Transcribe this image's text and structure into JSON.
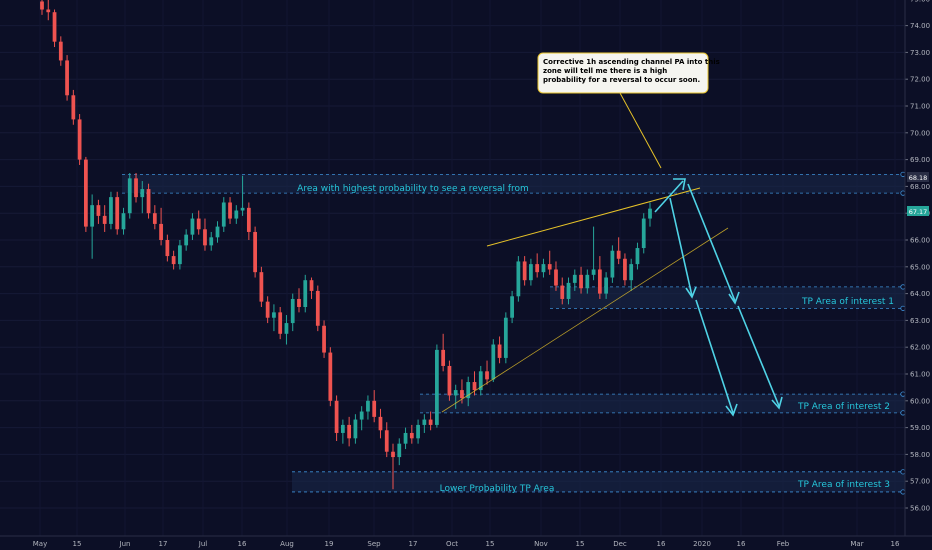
{
  "chart_data": {
    "type": "candlestick",
    "symbol_axis": {
      "yticks": [
        "56.00",
        "57.00",
        "58.00",
        "59.00",
        "60.00",
        "61.00",
        "62.00",
        "63.00",
        "64.00",
        "65.00",
        "66.00",
        "67.00",
        "68.00",
        "69.00",
        "70.00",
        "71.00",
        "72.00",
        "73.00",
        "74.00",
        "75.00"
      ],
      "ylim": [
        55.3,
        75.2
      ]
    },
    "x_ticks": [
      "May",
      "15",
      "Jun",
      "17",
      "Jul",
      "16",
      "Aug",
      "19",
      "Sep",
      "17",
      "Oct",
      "15",
      "Nov",
      "15",
      "Dec",
      "16",
      "2020",
      "16",
      "Feb",
      "Mar",
      "16"
    ],
    "current_price": "67.17",
    "top_level_price": "68.18",
    "colors": {
      "background": "#0c0f26",
      "up": "#26a69a",
      "down": "#ef5350",
      "zone_line": "#3d8fd6",
      "channel": "#e6c229",
      "arrow": "#4fd3e6",
      "label": "#26c6da",
      "note_bg": "#f5f5f0",
      "note_border": "#e6c229"
    },
    "zones": [
      {
        "label": "Area with highest probability to see a reversal from",
        "top": 68.45,
        "bottom": 67.75
      },
      {
        "label": "TP Area of interest 1",
        "top": 64.25,
        "bottom": 63.45
      },
      {
        "label": "TP Area of interest 2",
        "top": 60.25,
        "bottom": 59.55
      },
      {
        "label": "Lower Probability TP Area",
        "top": 57.35,
        "bottom": 56.6
      }
    ],
    "extra_labels": [
      {
        "label": "TP Area of interest 3"
      }
    ],
    "annotation": {
      "text_lines": [
        "Corrective 1h ascending channel  PA into this",
        " zone will tell me there is a high",
        "probability for a reversal to occur soon."
      ]
    },
    "candles": [
      [
        74.9,
        75.2,
        74.4,
        74.6
      ],
      [
        74.6,
        75.0,
        74.2,
        74.5
      ],
      [
        74.5,
        74.6,
        73.2,
        73.4
      ],
      [
        73.4,
        73.6,
        72.5,
        72.7
      ],
      [
        72.7,
        72.9,
        71.2,
        71.4
      ],
      [
        71.4,
        71.6,
        70.3,
        70.5
      ],
      [
        70.5,
        70.7,
        68.8,
        69.0
      ],
      [
        69.0,
        69.1,
        66.3,
        66.5
      ],
      [
        66.5,
        67.7,
        65.3,
        67.3
      ],
      [
        67.3,
        67.5,
        66.6,
        66.9
      ],
      [
        66.9,
        67.3,
        66.3,
        66.6
      ],
      [
        66.6,
        67.8,
        66.4,
        67.6
      ],
      [
        67.6,
        67.8,
        66.2,
        66.4
      ],
      [
        66.4,
        67.2,
        66.2,
        67.0
      ],
      [
        67.0,
        68.5,
        66.8,
        68.3
      ],
      [
        68.3,
        68.5,
        67.4,
        67.6
      ],
      [
        67.6,
        68.2,
        67.0,
        67.9
      ],
      [
        67.9,
        68.1,
        66.8,
        67.0
      ],
      [
        67.0,
        67.3,
        66.4,
        66.6
      ],
      [
        66.6,
        67.2,
        65.8,
        66.0
      ],
      [
        66.0,
        66.2,
        65.2,
        65.4
      ],
      [
        65.4,
        65.6,
        64.9,
        65.1
      ],
      [
        65.1,
        66.0,
        64.9,
        65.8
      ],
      [
        65.8,
        66.4,
        65.6,
        66.2
      ],
      [
        66.2,
        67.0,
        66.0,
        66.8
      ],
      [
        66.8,
        67.1,
        66.2,
        66.4
      ],
      [
        66.4,
        66.8,
        65.6,
        65.8
      ],
      [
        65.8,
        66.3,
        65.6,
        66.1
      ],
      [
        66.1,
        66.7,
        65.9,
        66.5
      ],
      [
        66.5,
        67.6,
        66.3,
        67.4
      ],
      [
        67.4,
        67.6,
        66.6,
        66.8
      ],
      [
        66.8,
        67.3,
        66.6,
        67.1
      ],
      [
        67.1,
        68.4,
        66.9,
        67.2
      ],
      [
        67.2,
        67.4,
        66.0,
        66.3
      ],
      [
        66.3,
        66.5,
        64.6,
        64.8
      ],
      [
        64.8,
        65.0,
        63.5,
        63.7
      ],
      [
        63.7,
        63.9,
        62.9,
        63.1
      ],
      [
        63.1,
        63.6,
        62.6,
        63.3
      ],
      [
        63.3,
        63.5,
        62.3,
        62.5
      ],
      [
        62.5,
        63.2,
        62.1,
        62.9
      ],
      [
        62.9,
        64.0,
        62.6,
        63.8
      ],
      [
        63.8,
        64.2,
        63.3,
        63.5
      ],
      [
        63.5,
        64.7,
        63.3,
        64.5
      ],
      [
        64.5,
        64.6,
        63.8,
        64.1
      ],
      [
        64.1,
        64.3,
        62.6,
        62.8
      ],
      [
        62.8,
        63.0,
        61.6,
        61.8
      ],
      [
        61.8,
        62.0,
        59.8,
        60.0
      ],
      [
        60.0,
        60.2,
        58.5,
        58.8
      ],
      [
        58.8,
        59.3,
        58.4,
        59.1
      ],
      [
        59.1,
        59.4,
        58.3,
        58.6
      ],
      [
        58.6,
        59.5,
        58.4,
        59.3
      ],
      [
        59.3,
        59.8,
        58.9,
        59.6
      ],
      [
        59.6,
        60.2,
        59.3,
        60.0
      ],
      [
        60.0,
        60.4,
        59.2,
        59.4
      ],
      [
        59.4,
        59.7,
        58.6,
        58.9
      ],
      [
        58.9,
        59.2,
        57.9,
        58.1
      ],
      [
        58.1,
        58.4,
        56.7,
        57.9
      ],
      [
        57.9,
        58.6,
        57.6,
        58.4
      ],
      [
        58.4,
        59.0,
        58.2,
        58.8
      ],
      [
        58.8,
        59.1,
        58.4,
        58.6
      ],
      [
        58.6,
        59.3,
        58.4,
        59.1
      ],
      [
        59.1,
        59.5,
        58.8,
        59.3
      ],
      [
        59.3,
        59.6,
        58.9,
        59.1
      ],
      [
        59.1,
        62.1,
        59.0,
        61.9
      ],
      [
        61.9,
        62.5,
        61.1,
        61.3
      ],
      [
        61.3,
        61.5,
        60.0,
        60.2
      ],
      [
        60.2,
        60.6,
        59.7,
        60.4
      ],
      [
        60.4,
        60.8,
        59.9,
        60.1
      ],
      [
        60.1,
        60.9,
        59.8,
        60.7
      ],
      [
        60.7,
        61.1,
        60.2,
        60.4
      ],
      [
        60.4,
        61.3,
        60.2,
        61.1
      ],
      [
        61.1,
        61.5,
        60.6,
        60.8
      ],
      [
        60.8,
        62.3,
        60.7,
        62.1
      ],
      [
        62.1,
        62.4,
        61.4,
        61.6
      ],
      [
        61.6,
        63.3,
        61.4,
        63.1
      ],
      [
        63.1,
        64.1,
        62.9,
        63.9
      ],
      [
        63.9,
        65.4,
        63.7,
        65.2
      ],
      [
        65.2,
        65.4,
        64.3,
        64.5
      ],
      [
        64.5,
        65.3,
        64.3,
        65.1
      ],
      [
        65.1,
        65.5,
        64.6,
        64.8
      ],
      [
        64.8,
        65.3,
        64.6,
        65.1
      ],
      [
        65.1,
        65.6,
        64.7,
        64.9
      ],
      [
        64.9,
        65.2,
        64.1,
        64.3
      ],
      [
        64.3,
        64.6,
        63.6,
        63.8
      ],
      [
        63.8,
        64.6,
        63.6,
        64.4
      ],
      [
        64.4,
        64.9,
        64.1,
        64.7
      ],
      [
        64.7,
        65.0,
        64.0,
        64.2
      ],
      [
        64.2,
        64.9,
        64.0,
        64.7
      ],
      [
        64.7,
        66.5,
        64.5,
        64.9
      ],
      [
        64.9,
        65.4,
        63.8,
        64.0
      ],
      [
        64.0,
        64.8,
        63.8,
        64.6
      ],
      [
        64.6,
        65.8,
        64.4,
        65.6
      ],
      [
        65.6,
        66.1,
        65.1,
        65.3
      ],
      [
        65.3,
        65.5,
        64.3,
        64.5
      ],
      [
        64.5,
        65.3,
        64.1,
        65.1
      ],
      [
        65.1,
        65.9,
        64.9,
        65.7
      ],
      [
        65.7,
        67.0,
        65.5,
        66.8
      ],
      [
        66.8,
        67.4,
        66.5,
        67.17
      ]
    ]
  }
}
